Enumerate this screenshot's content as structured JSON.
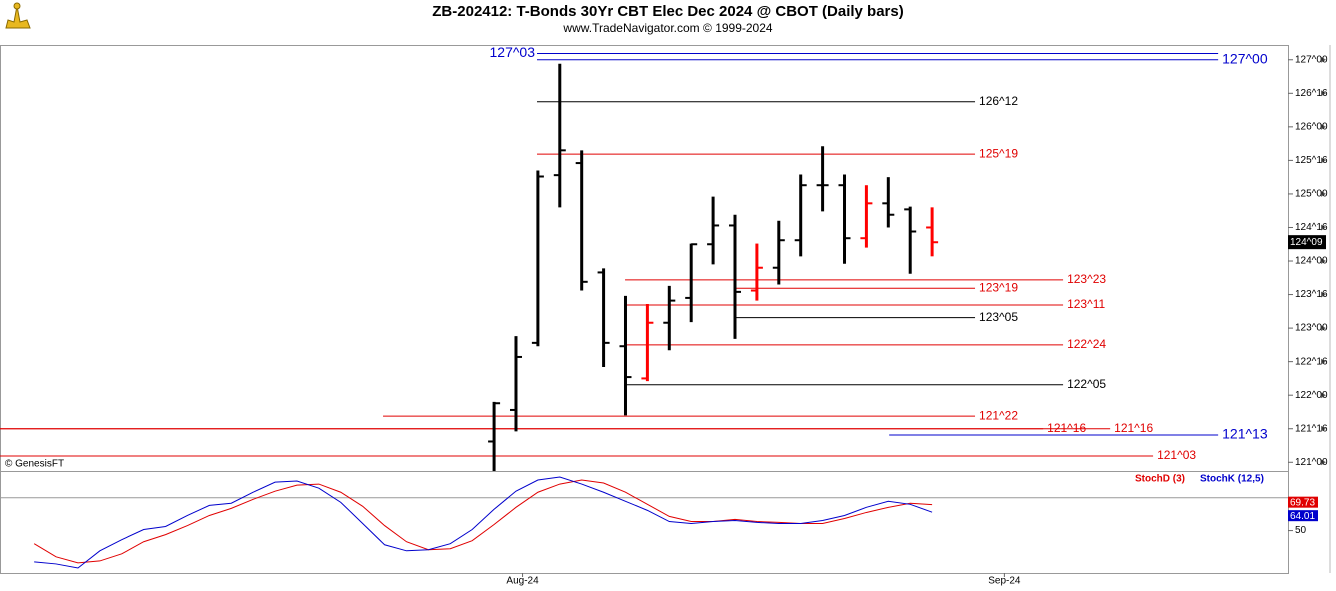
{
  "chart_data": [
    {
      "type": "ohlc",
      "title": "ZB-202412:  T-Bonds 30Yr CBT Elec Dec 2024 @ CBOT  (Daily bars)",
      "subtitle": "www.TradeNavigator.com © 1999-2024",
      "annotation": "© GenesisFT",
      "xlim": [
        -22.56,
        36.25
      ],
      "ylim": [
        120.87,
        127.22
      ],
      "yticks": [
        {
          "value": 121,
          "label": "121^00"
        },
        {
          "value": 121.5,
          "label": "121^16"
        },
        {
          "value": 122,
          "label": "122^00"
        },
        {
          "value": 122.5,
          "label": "122^16"
        },
        {
          "value": 123,
          "label": "123^00"
        },
        {
          "value": 123.5,
          "label": "123^16"
        },
        {
          "value": 124,
          "label": "124^00"
        },
        {
          "value": 124.5,
          "label": "124^16"
        },
        {
          "value": 125,
          "label": "125^00"
        },
        {
          "value": 125.5,
          "label": "125^16"
        },
        {
          "value": 126,
          "label": "126^00"
        },
        {
          "value": 126.5,
          "label": "126^16"
        },
        {
          "value": 127,
          "label": "127^00"
        }
      ],
      "last_price": {
        "value": 124.28125,
        "label": "124^09"
      },
      "x": [
        0,
        1,
        2,
        3,
        4,
        5,
        6,
        7,
        8,
        9,
        10,
        11,
        12,
        13,
        14,
        15,
        16,
        17,
        18,
        19,
        20
      ],
      "bars": [
        {
          "open": 121.31,
          "high": 121.9,
          "low": 120.87,
          "close": 121.88,
          "color": "#000000"
        },
        {
          "open": 121.78,
          "high": 122.88,
          "low": 121.46,
          "close": 122.57,
          "color": "#000000"
        },
        {
          "open": 122.78,
          "high": 125.35,
          "low": 122.73,
          "close": 125.26,
          "color": "#000000"
        },
        {
          "open": 125.28,
          "high": 126.94,
          "low": 124.8,
          "close": 125.65,
          "color": "#000000"
        },
        {
          "open": 125.46,
          "high": 125.65,
          "low": 123.56,
          "close": 123.69,
          "color": "#000000"
        },
        {
          "open": 123.83,
          "high": 123.89,
          "low": 122.42,
          "close": 122.78,
          "color": "#000000"
        },
        {
          "open": 122.73,
          "high": 123.48,
          "low": 121.7,
          "close": 122.27,
          "color": "#000000"
        },
        {
          "open": 122.25,
          "high": 123.36,
          "low": 122.21,
          "close": 123.08,
          "color": "#ff0000"
        },
        {
          "open": 123.08,
          "high": 123.63,
          "low": 122.67,
          "close": 123.41,
          "color": "#000000"
        },
        {
          "open": 123.45,
          "high": 124.26,
          "low": 123.09,
          "close": 124.25,
          "color": "#000000"
        },
        {
          "open": 124.25,
          "high": 124.96,
          "low": 123.95,
          "close": 124.53,
          "color": "#000000"
        },
        {
          "open": 124.53,
          "high": 124.69,
          "low": 122.84,
          "close": 123.54,
          "color": "#000000"
        },
        {
          "open": 123.56,
          "high": 124.26,
          "low": 123.41,
          "close": 123.9,
          "color": "#ff0000"
        },
        {
          "open": 123.9,
          "high": 124.6,
          "low": 123.65,
          "close": 124.31,
          "color": "#000000"
        },
        {
          "open": 124.31,
          "high": 125.29,
          "low": 124.07,
          "close": 125.13,
          "color": "#000000"
        },
        {
          "open": 125.13,
          "high": 125.71,
          "low": 124.74,
          "close": 125.13,
          "color": "#000000"
        },
        {
          "open": 125.13,
          "high": 125.29,
          "low": 123.96,
          "close": 124.34,
          "color": "#000000"
        },
        {
          "open": 124.34,
          "high": 125.13,
          "low": 124.2,
          "close": 124.86,
          "color": "#ff0000"
        },
        {
          "open": 124.86,
          "high": 125.25,
          "low": 124.5,
          "close": 124.69,
          "color": "#000000"
        },
        {
          "open": 124.77,
          "high": 124.81,
          "low": 123.81,
          "close": 124.44,
          "color": "#000000"
        },
        {
          "open": 124.5,
          "high": 124.8,
          "low": 124.07,
          "close": 124.28,
          "color": "#ff0000"
        }
      ],
      "levels": [
        {
          "value": 127.09375,
          "label": "127^03",
          "color": "#0000cc",
          "x0": 1.96,
          "x1": 33.06,
          "label_side": "left"
        },
        {
          "value": 127.0,
          "label": "127^00",
          "color": "#0000cc",
          "x0": 1.96,
          "x1": 33.06,
          "label_side": "right"
        },
        {
          "value": 126.375,
          "label": "126^12",
          "color": "#000000",
          "x0": 1.96,
          "x1": 21.96,
          "label_side": "right"
        },
        {
          "value": 125.59375,
          "label": "125^19",
          "color": "#e00000",
          "x0": 1.96,
          "x1": 21.96,
          "label_side": "right"
        },
        {
          "value": 123.71875,
          "label": "123^23",
          "color": "#e00000",
          "x0": 5.98,
          "x1": 25.98,
          "label_side": "right"
        },
        {
          "value": 123.59375,
          "label": "123^19",
          "color": "#e00000",
          "x0": 11.0,
          "x1": 21.96,
          "label_side": "right"
        },
        {
          "value": 123.34375,
          "label": "123^11",
          "color": "#e00000",
          "x0": 5.98,
          "x1": 25.98,
          "label_side": "right"
        },
        {
          "value": 123.15625,
          "label": "123^05",
          "color": "#000000",
          "x0": 11.0,
          "x1": 21.96,
          "label_side": "right"
        },
        {
          "value": 122.75,
          "label": "122^24",
          "color": "#e00000",
          "x0": 5.98,
          "x1": 25.98,
          "label_side": "right"
        },
        {
          "value": 122.15625,
          "label": "122^05",
          "color": "#000000",
          "x0": 5.98,
          "x1": 25.98,
          "label_side": "right"
        },
        {
          "value": 121.6875,
          "label": "121^22",
          "color": "#e00000",
          "x0": -5.07,
          "x1": 21.96,
          "label_side": "right"
        },
        {
          "value": 121.5,
          "label": "121^16",
          "color": "#e00000",
          "x0": -22.56,
          "x1": 25.07,
          "label_side": "right"
        },
        {
          "value": 121.5,
          "label": "121^16",
          "color": "#e00000",
          "x0": -22.56,
          "x1": 28.13,
          "label_side": "right"
        },
        {
          "value": 121.40625,
          "label": "121^13",
          "color": "#0000cc",
          "x0": 18.04,
          "x1": 33.06,
          "label_side": "right"
        },
        {
          "value": 121.09375,
          "label": "121^03",
          "color": "#e00000",
          "x0": -22.56,
          "x1": 30.09,
          "label_side": "right"
        }
      ]
    },
    {
      "type": "line",
      "xlim": [
        -22.56,
        36.25
      ],
      "ylim": [
        17.7,
        94.6
      ],
      "yticks": [
        50
      ],
      "hline": 75,
      "xticks": [
        {
          "value": 1.3,
          "label": "Aug-24"
        },
        {
          "value": 23.3,
          "label": "Sep-24"
        }
      ],
      "x": [
        -21,
        -20,
        -19,
        -18,
        -17,
        -16,
        -15,
        -14,
        -13,
        -12,
        -11,
        -10,
        -9,
        -8,
        -7,
        -6,
        -5,
        -4,
        -3,
        -2,
        -1,
        0,
        1,
        2,
        3,
        4,
        5,
        6,
        7,
        8,
        9,
        10,
        11,
        12,
        13,
        14,
        15,
        16,
        17,
        18,
        19,
        20
      ],
      "series": [
        {
          "name": "StochD (3)",
          "color": "#e00000",
          "values": [
            40,
            30,
            25.4,
            26.9,
            32.3,
            41.5,
            46.9,
            53.8,
            61.5,
            66.9,
            73.8,
            80,
            84.6,
            85.4,
            79.2,
            68.5,
            53.8,
            41.5,
            35.4,
            36.2,
            42.3,
            54.6,
            67.7,
            79.2,
            85.4,
            88.5,
            86.2,
            79.2,
            70,
            60.8,
            56.9,
            56.9,
            58.5,
            56.9,
            56.2,
            55.4,
            55.4,
            59.2,
            63.8,
            67.7,
            70.8,
            69.73
          ]
        },
        {
          "name": "StochK (12,5)",
          "color": "#0000cc",
          "values": [
            26.2,
            24.6,
            21.5,
            34.6,
            43.1,
            50.8,
            53.1,
            61.5,
            69.2,
            70.8,
            79.2,
            86.9,
            87.7,
            82.3,
            71.5,
            55.4,
            39.2,
            34.6,
            35.4,
            40,
            50.8,
            66.2,
            80,
            88.5,
            90.8,
            85.4,
            79.2,
            72.3,
            65.4,
            56.9,
            55.4,
            56.9,
            57.7,
            56.2,
            55.4,
            55.4,
            57.7,
            61.5,
            67.7,
            72.3,
            70,
            64.01
          ]
        }
      ]
    }
  ]
}
